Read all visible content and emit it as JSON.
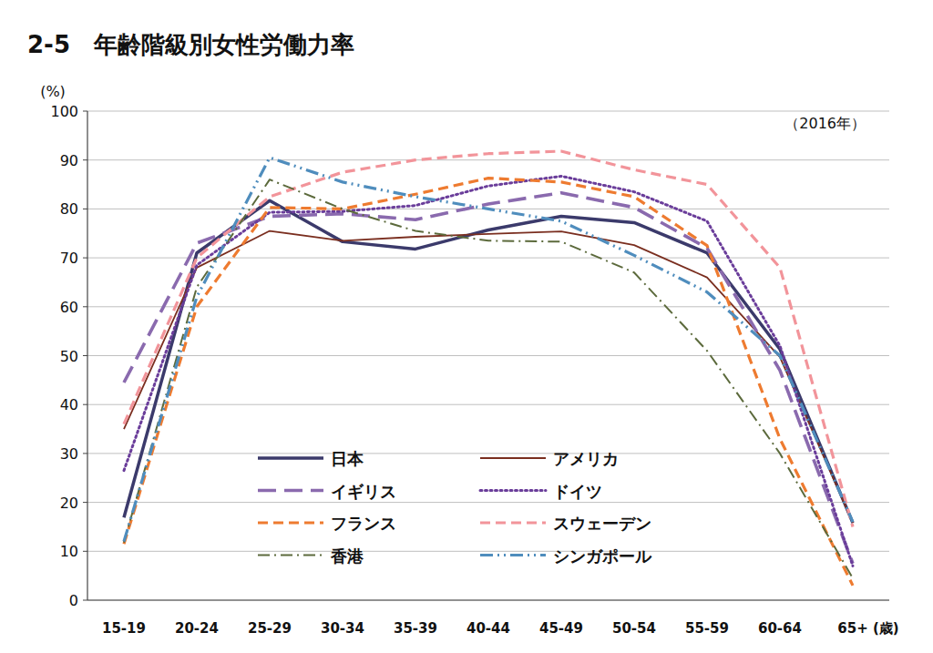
{
  "chart_data": {
    "type": "line",
    "title": "2-5　年齢階級別女性労働力率",
    "y_label": "(%)",
    "x_label": "(歳)",
    "annotation": "（2016年）",
    "categories": [
      "15-19",
      "20-24",
      "25-29",
      "30-34",
      "35-39",
      "40-44",
      "45-49",
      "50-54",
      "55-59",
      "60-64",
      "65+"
    ],
    "ylim": [
      0,
      100
    ],
    "yticks": [
      0,
      10,
      20,
      30,
      40,
      50,
      60,
      70,
      80,
      90,
      100
    ],
    "grid": true,
    "legend": "bottom",
    "series": [
      {
        "name": "日本",
        "color": "#3b3a6b",
        "line_style": "solid",
        "values": [
          16.9,
          71.0,
          81.7,
          73.3,
          71.8,
          75.7,
          78.5,
          77.2,
          71.0,
          51.3,
          15.8
        ]
      },
      {
        "name": "アメリカ",
        "color": "#7a2e1f",
        "line_style": "solid",
        "values": [
          35.0,
          68.0,
          75.5,
          73.5,
          74.3,
          74.9,
          75.4,
          72.6,
          66.0,
          49.7,
          15.8
        ]
      },
      {
        "name": "イギリス",
        "color": "#8a6aae",
        "line_style": "longdash",
        "values": [
          44.5,
          73.0,
          78.5,
          79.0,
          77.8,
          81.0,
          83.3,
          80.3,
          72.0,
          47.0,
          7.5
        ]
      },
      {
        "name": "ドイツ",
        "color": "#6a3d9a",
        "line_style": "dotted",
        "values": [
          26.5,
          68.5,
          79.3,
          79.5,
          80.7,
          84.7,
          86.7,
          83.5,
          77.5,
          52.0,
          7.0
        ]
      },
      {
        "name": "フランス",
        "color": "#ee7b30",
        "line_style": "dashed",
        "values": [
          11.5,
          60.0,
          80.3,
          80.0,
          83.0,
          86.3,
          85.5,
          82.5,
          72.5,
          33.0,
          3.0
        ]
      },
      {
        "name": "スウェーデン",
        "color": "#f2949a",
        "line_style": "dashed",
        "values": [
          36.0,
          70.0,
          82.5,
          87.5,
          90.0,
          91.3,
          91.8,
          88.0,
          85.0,
          68.0,
          15.0
        ]
      },
      {
        "name": "香港",
        "color": "#5c6a3c",
        "line_style": "dashdot",
        "values": [
          11.8,
          64.0,
          86.0,
          80.0,
          75.5,
          73.5,
          73.3,
          67.0,
          51.0,
          30.0,
          4.5
        ]
      },
      {
        "name": "シンガポール",
        "color": "#4f8dbd",
        "line_style": "dashdotdot",
        "values": [
          12.0,
          62.0,
          90.5,
          85.5,
          82.5,
          80.0,
          77.5,
          70.5,
          63.0,
          50.0,
          16.0
        ]
      }
    ]
  }
}
